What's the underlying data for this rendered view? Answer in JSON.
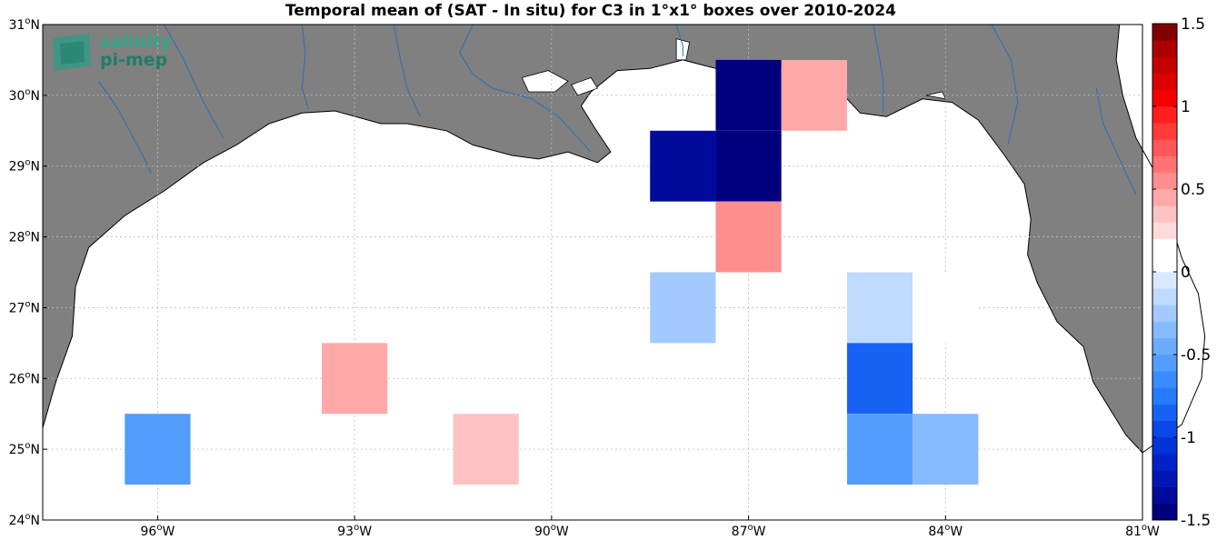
{
  "title": "Temporal mean of (SAT - In situ) for C3 in 1°x1° boxes over 2010-2024",
  "logo": {
    "line1": "salinity",
    "line2": "pi-mep"
  },
  "chart_data": {
    "type": "heatmap",
    "title": "Temporal mean of (SAT - In situ) for C3 in 1°x1° boxes over 2010-2024",
    "lon_range": [
      -97.75,
      -81
    ],
    "lat_range": [
      24,
      31
    ],
    "x_ticks": [
      {
        "lon": -96,
        "deg": "96",
        "hemi": "W"
      },
      {
        "lon": -93,
        "deg": "93",
        "hemi": "W"
      },
      {
        "lon": -90,
        "deg": "90",
        "hemi": "W"
      },
      {
        "lon": -87,
        "deg": "87",
        "hemi": "W"
      },
      {
        "lon": -84,
        "deg": "84",
        "hemi": "W"
      },
      {
        "lon": -81,
        "deg": "81",
        "hemi": "W"
      }
    ],
    "y_ticks": [
      {
        "lat": 24,
        "deg": "24",
        "hemi": "N"
      },
      {
        "lat": 25,
        "deg": "25",
        "hemi": "N"
      },
      {
        "lat": 26,
        "deg": "26",
        "hemi": "N"
      },
      {
        "lat": 27,
        "deg": "27",
        "hemi": "N"
      },
      {
        "lat": 28,
        "deg": "28",
        "hemi": "N"
      },
      {
        "lat": 29,
        "deg": "29",
        "hemi": "N"
      },
      {
        "lat": 30,
        "deg": "30",
        "hemi": "N"
      },
      {
        "lat": 31,
        "deg": "31",
        "hemi": "N"
      }
    ],
    "grid": true,
    "boxes": [
      {
        "lon": -96,
        "lat": 25,
        "value": -0.6
      },
      {
        "lon": -93,
        "lat": 26,
        "value": 0.45
      },
      {
        "lon": -91,
        "lat": 25,
        "value": 0.3
      },
      {
        "lon": -88,
        "lat": 29,
        "value": -1.3
      },
      {
        "lon": -88,
        "lat": 27,
        "value": -0.25
      },
      {
        "lon": -87,
        "lat": 30,
        "value": -1.5
      },
      {
        "lon": -87,
        "lat": 29,
        "value": -1.5
      },
      {
        "lon": -87,
        "lat": 28,
        "value": 0.55
      },
      {
        "lon": -86,
        "lat": 30,
        "value": 0.45
      },
      {
        "lon": -85,
        "lat": 27,
        "value": -0.15
      },
      {
        "lon": -85,
        "lat": 26,
        "value": -0.85
      },
      {
        "lon": -85,
        "lat": 25,
        "value": -0.6
      },
      {
        "lon": -84,
        "lat": 27,
        "value": 0.15
      },
      {
        "lon": -84,
        "lat": 25,
        "value": -0.4
      }
    ],
    "colorbar": {
      "min": -1.5,
      "max": 1.5,
      "ticks": [
        -1.5,
        -1,
        -0.5,
        0,
        0.5,
        1,
        1.5
      ],
      "tick_labels": [
        "-1.5",
        "-1",
        "-0.5",
        "0",
        "0.5",
        "1",
        "1.5"
      ],
      "colors": [
        "#00007f",
        "#000b9c",
        "#0016b3",
        "#0022c7",
        "#0233d8",
        "#0a46e8",
        "#1761f5",
        "#267bfd",
        "#3a8cff",
        "#539dff",
        "#6cabff",
        "#86bbff",
        "#a3caff",
        "#bfdbff",
        "#dbe9ff",
        "#ffffff",
        "#ffffff",
        "#ffdbdb",
        "#ffc2c2",
        "#ffa8a8",
        "#ff8f8f",
        "#ff7373",
        "#ff5858",
        "#ff3b3b",
        "#ff1f1f",
        "#f40000",
        "#dc0000",
        "#c40000",
        "#ab0000",
        "#7f0000"
      ]
    },
    "land_color": "#808080",
    "ocean_color": "#ffffff",
    "river_color": "#2a6fb5"
  }
}
